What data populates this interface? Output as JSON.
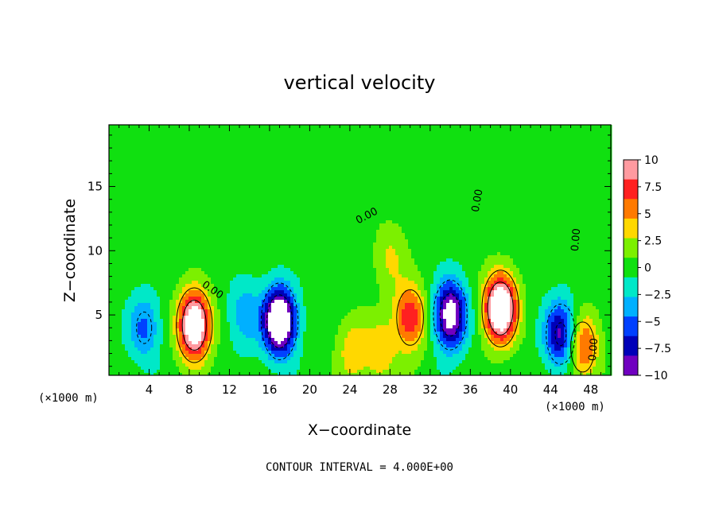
{
  "chart_data": {
    "type": "heatmap",
    "title": "vertical velocity",
    "xlabel": "X−coordinate",
    "ylabel": "Z−coordinate",
    "x_unit_left": "(×1000 m)",
    "x_unit_right": "(×1000 m)",
    "footer": "CONTOUR INTERVAL = 4.000E+00",
    "xlim": [
      0,
      50
    ],
    "ylim": [
      0.3,
      19.8
    ],
    "x_ticks": [
      4,
      8,
      12,
      16,
      20,
      24,
      28,
      32,
      36,
      40,
      44,
      48
    ],
    "x_tick_labels": [
      "4",
      "8",
      "12",
      "16",
      "20",
      "24",
      "28",
      "32",
      "36",
      "40",
      "44",
      "48"
    ],
    "y_ticks": [
      5,
      10,
      15
    ],
    "y_tick_labels": [
      "5",
      "10",
      "15"
    ],
    "colorbar": {
      "min": -10,
      "max": 10,
      "ticks": [
        10,
        7.5,
        5,
        2.5,
        0,
        -2.5,
        -5,
        -7.5,
        -10
      ],
      "tick_labels": [
        "10",
        "7.5",
        "5",
        "2.5",
        "0",
        "−2.5",
        "−5",
        "−7.5",
        "−10"
      ],
      "colors": [
        "#ff9aa0",
        "#ff2020",
        "#ff7a00",
        "#ffd800",
        "#7cf000",
        "#10e010",
        "#00e8c8",
        "#00b0ff",
        "#0040ff",
        "#0000b8",
        "#7000c0"
      ]
    },
    "contour_interval": 4.0,
    "contour_labels": [
      "0.00",
      "0.00",
      "0.00",
      "0.00",
      "0.00"
    ],
    "features": [
      {
        "x": 8.5,
        "z": 4.2,
        "w": 14
      },
      {
        "x": 39.0,
        "z": 5.5,
        "w": 15
      },
      {
        "x": 30.0,
        "z": 4.8,
        "w": 8
      },
      {
        "x": 28.0,
        "z": 9.5,
        "w": 3
      },
      {
        "x": 47.2,
        "z": 2.5,
        "w": 7
      },
      {
        "x": 24.3,
        "z": 2.3,
        "w": 4
      },
      {
        "x": 27.0,
        "z": 2.0,
        "w": 4
      },
      {
        "x": 17.0,
        "z": 4.5,
        "w": -15
      },
      {
        "x": 34.0,
        "z": 5.0,
        "w": -12
      },
      {
        "x": 45.0,
        "z": 3.5,
        "w": -9
      },
      {
        "x": 3.5,
        "z": 4.0,
        "w": -5
      },
      {
        "x": 13.5,
        "z": 5.0,
        "w": -4
      }
    ]
  }
}
